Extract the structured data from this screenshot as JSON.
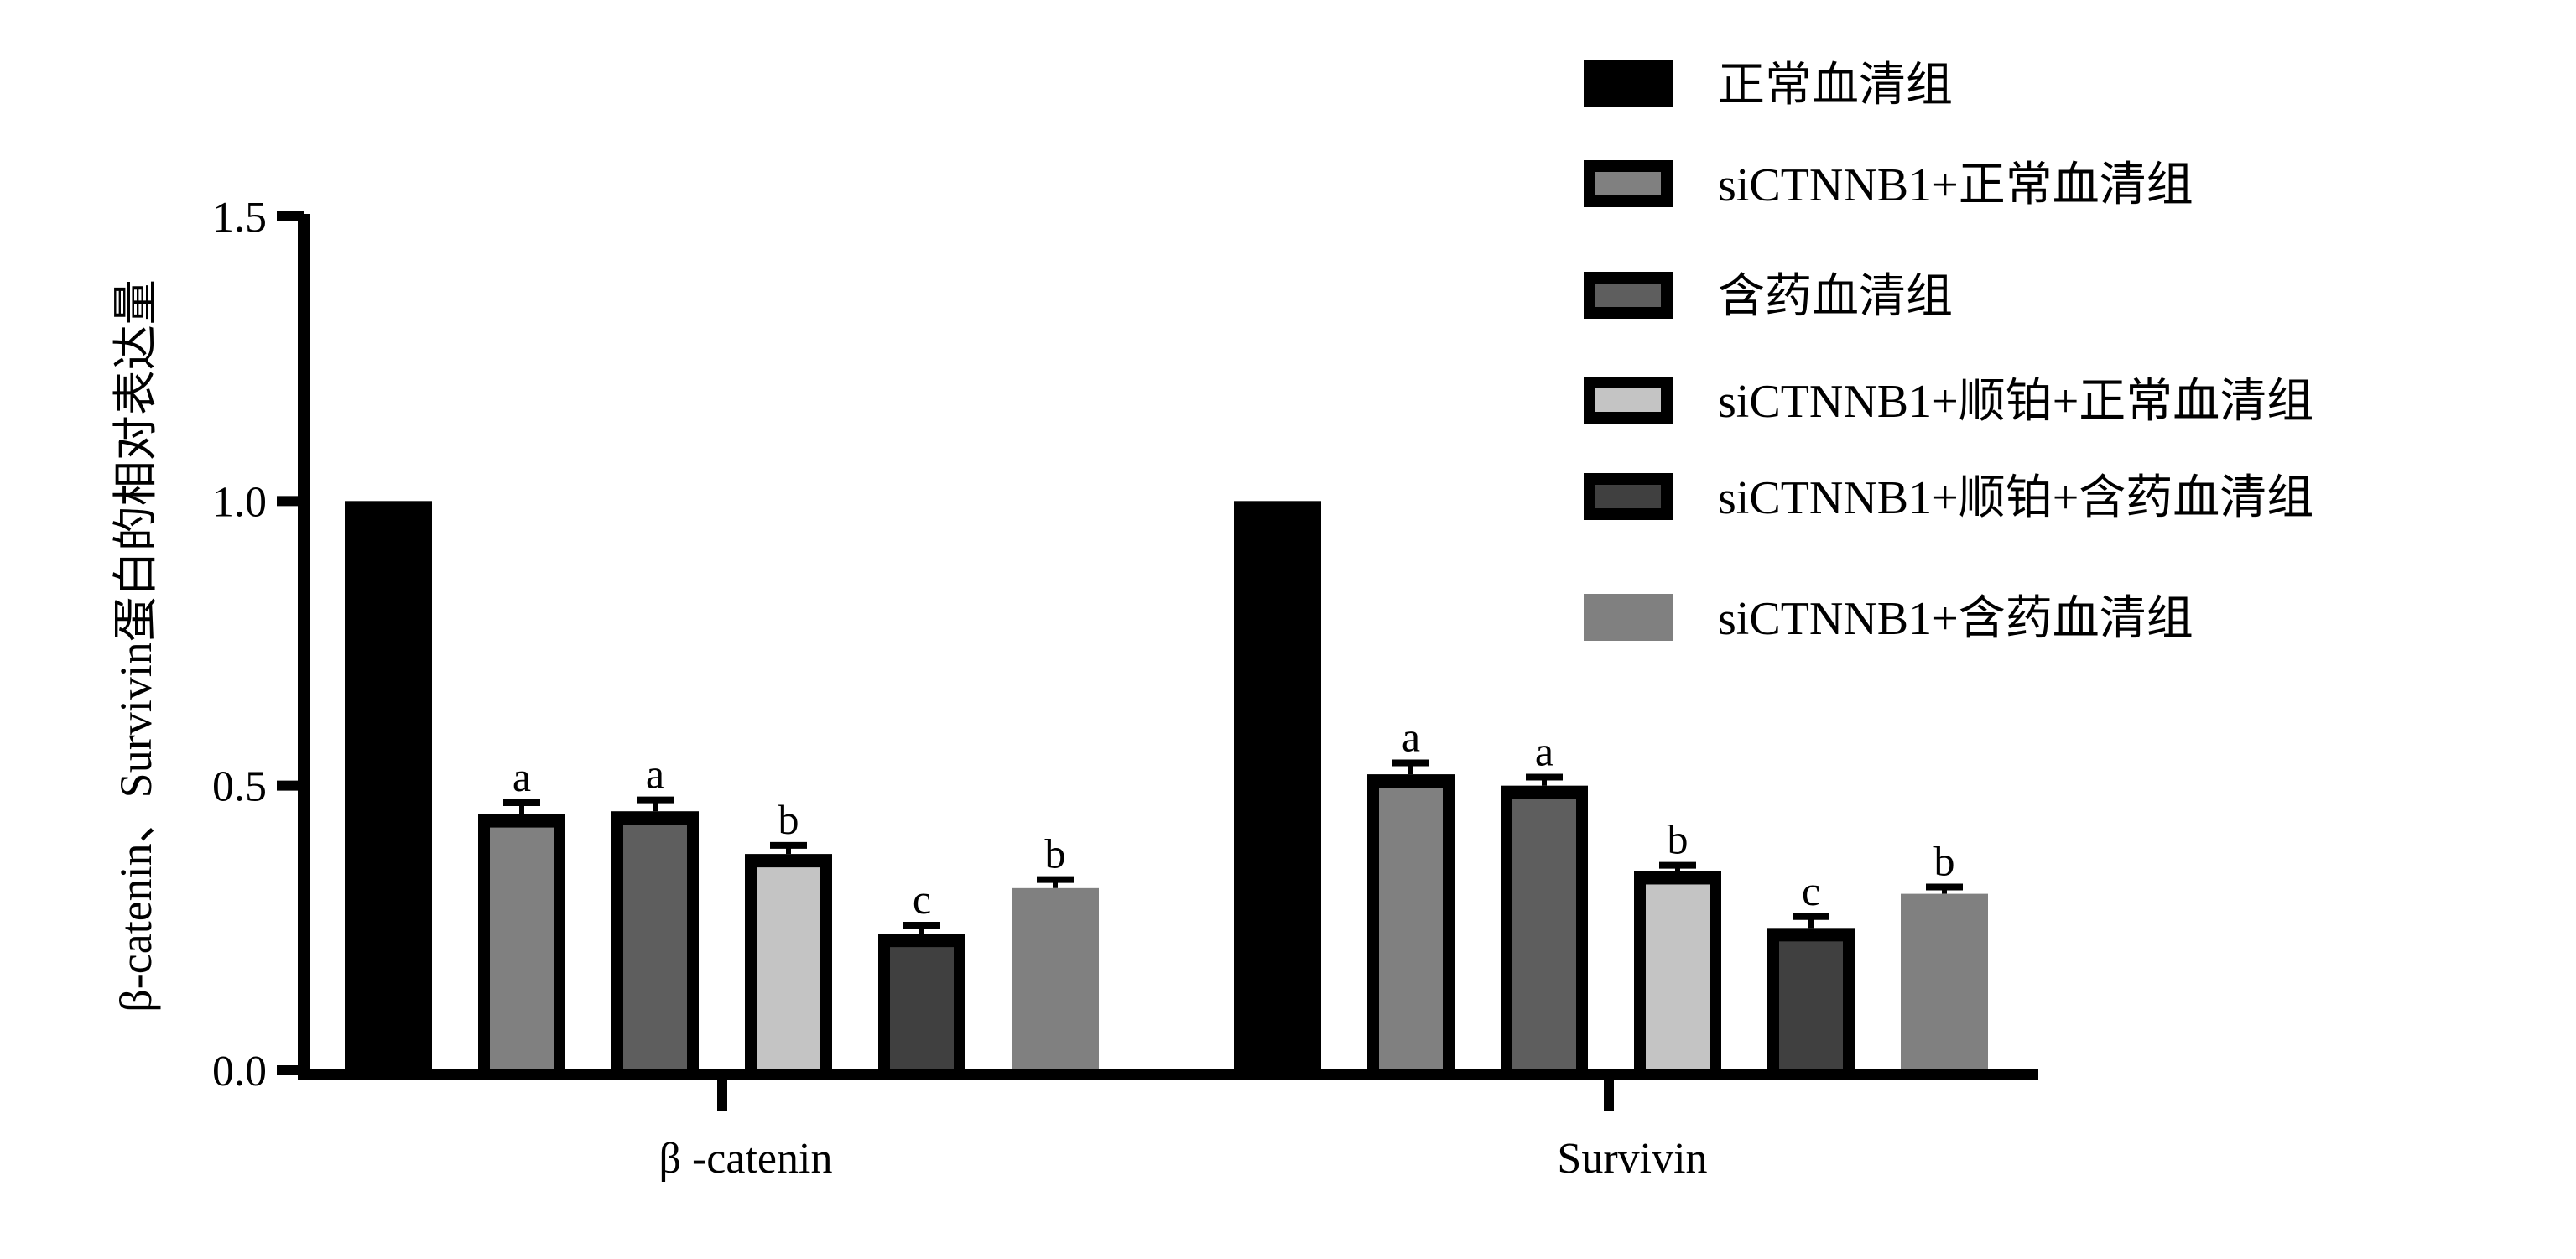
{
  "chart_data": {
    "type": "bar",
    "title": "",
    "xlabel": "",
    "ylabel": "β-catenin、Survivin蛋白的相对表达量",
    "ylim": [
      0,
      1.5
    ],
    "yticks": [
      "0.0",
      "0.5",
      "1.0",
      "1.5"
    ],
    "ytick_values": [
      0,
      0.5,
      1.0,
      1.5
    ],
    "categories": [
      "β -catenin",
      "Survivin"
    ],
    "legend_position": "top-right",
    "series": [
      {
        "name": "正常血清组",
        "color": "#000000",
        "outlined": false,
        "values": [
          1.0,
          1.0
        ],
        "errors": [
          0,
          0
        ],
        "labels": [
          "",
          ""
        ]
      },
      {
        "name": "siCTNNB1+正常血清组",
        "color": "#808080",
        "outlined": true,
        "values": [
          0.45,
          0.52
        ],
        "errors": [
          0.02,
          0.02
        ],
        "labels": [
          "a",
          "a"
        ]
      },
      {
        "name": "含药血清组",
        "color": "#5e5e5e",
        "outlined": true,
        "values": [
          0.455,
          0.5
        ],
        "errors": [
          0.02,
          0.015
        ],
        "labels": [
          "a",
          "a"
        ]
      },
      {
        "name": "siCTNNB1+顺铂+正常血清组",
        "color": "#c4c4c4",
        "outlined": true,
        "values": [
          0.38,
          0.35
        ],
        "errors": [
          0.015,
          0.01
        ],
        "labels": [
          "b",
          "b"
        ]
      },
      {
        "name": "siCTNNB1+顺铂+含药血清组",
        "color": "#404040",
        "outlined": true,
        "values": [
          0.24,
          0.25
        ],
        "errors": [
          0.015,
          0.02
        ],
        "labels": [
          "c",
          "c"
        ]
      },
      {
        "name": "siCTNNB1+含药血清组",
        "color": "#808080",
        "outlined": false,
        "values": [
          0.32,
          0.31
        ],
        "errors": [
          0.015,
          0.012
        ],
        "labels": [
          "b",
          "b"
        ]
      }
    ]
  }
}
